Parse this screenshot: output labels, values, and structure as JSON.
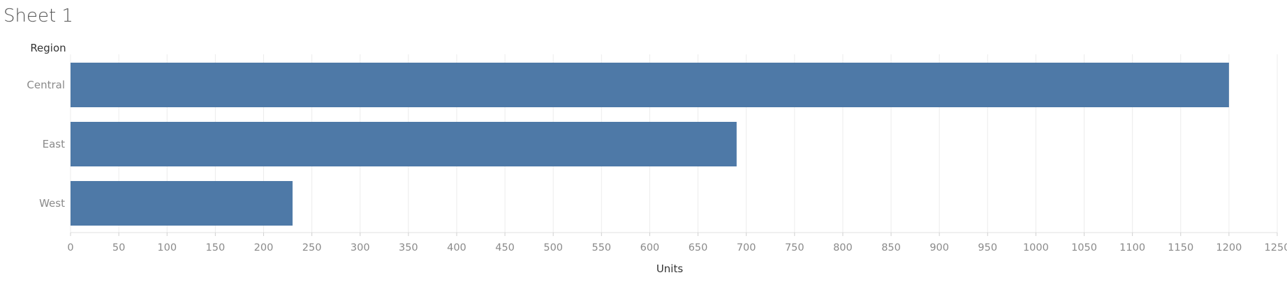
{
  "sheet": {
    "title": "Sheet 1"
  },
  "chart_data": {
    "type": "bar",
    "orientation": "horizontal",
    "title": "",
    "ylabel": "Region",
    "xlabel": "Units",
    "categories": [
      "Central",
      "East",
      "West"
    ],
    "series": [
      {
        "values": [
          1200,
          690,
          230
        ]
      }
    ],
    "xlim": [
      0,
      1250
    ],
    "xticks": [
      0,
      50,
      100,
      150,
      200,
      250,
      300,
      350,
      400,
      450,
      500,
      550,
      600,
      650,
      700,
      750,
      800,
      850,
      900,
      950,
      1000,
      1050,
      1100,
      1150,
      1200,
      1250
    ],
    "grid": true,
    "bar_color": "#4e79a7"
  }
}
